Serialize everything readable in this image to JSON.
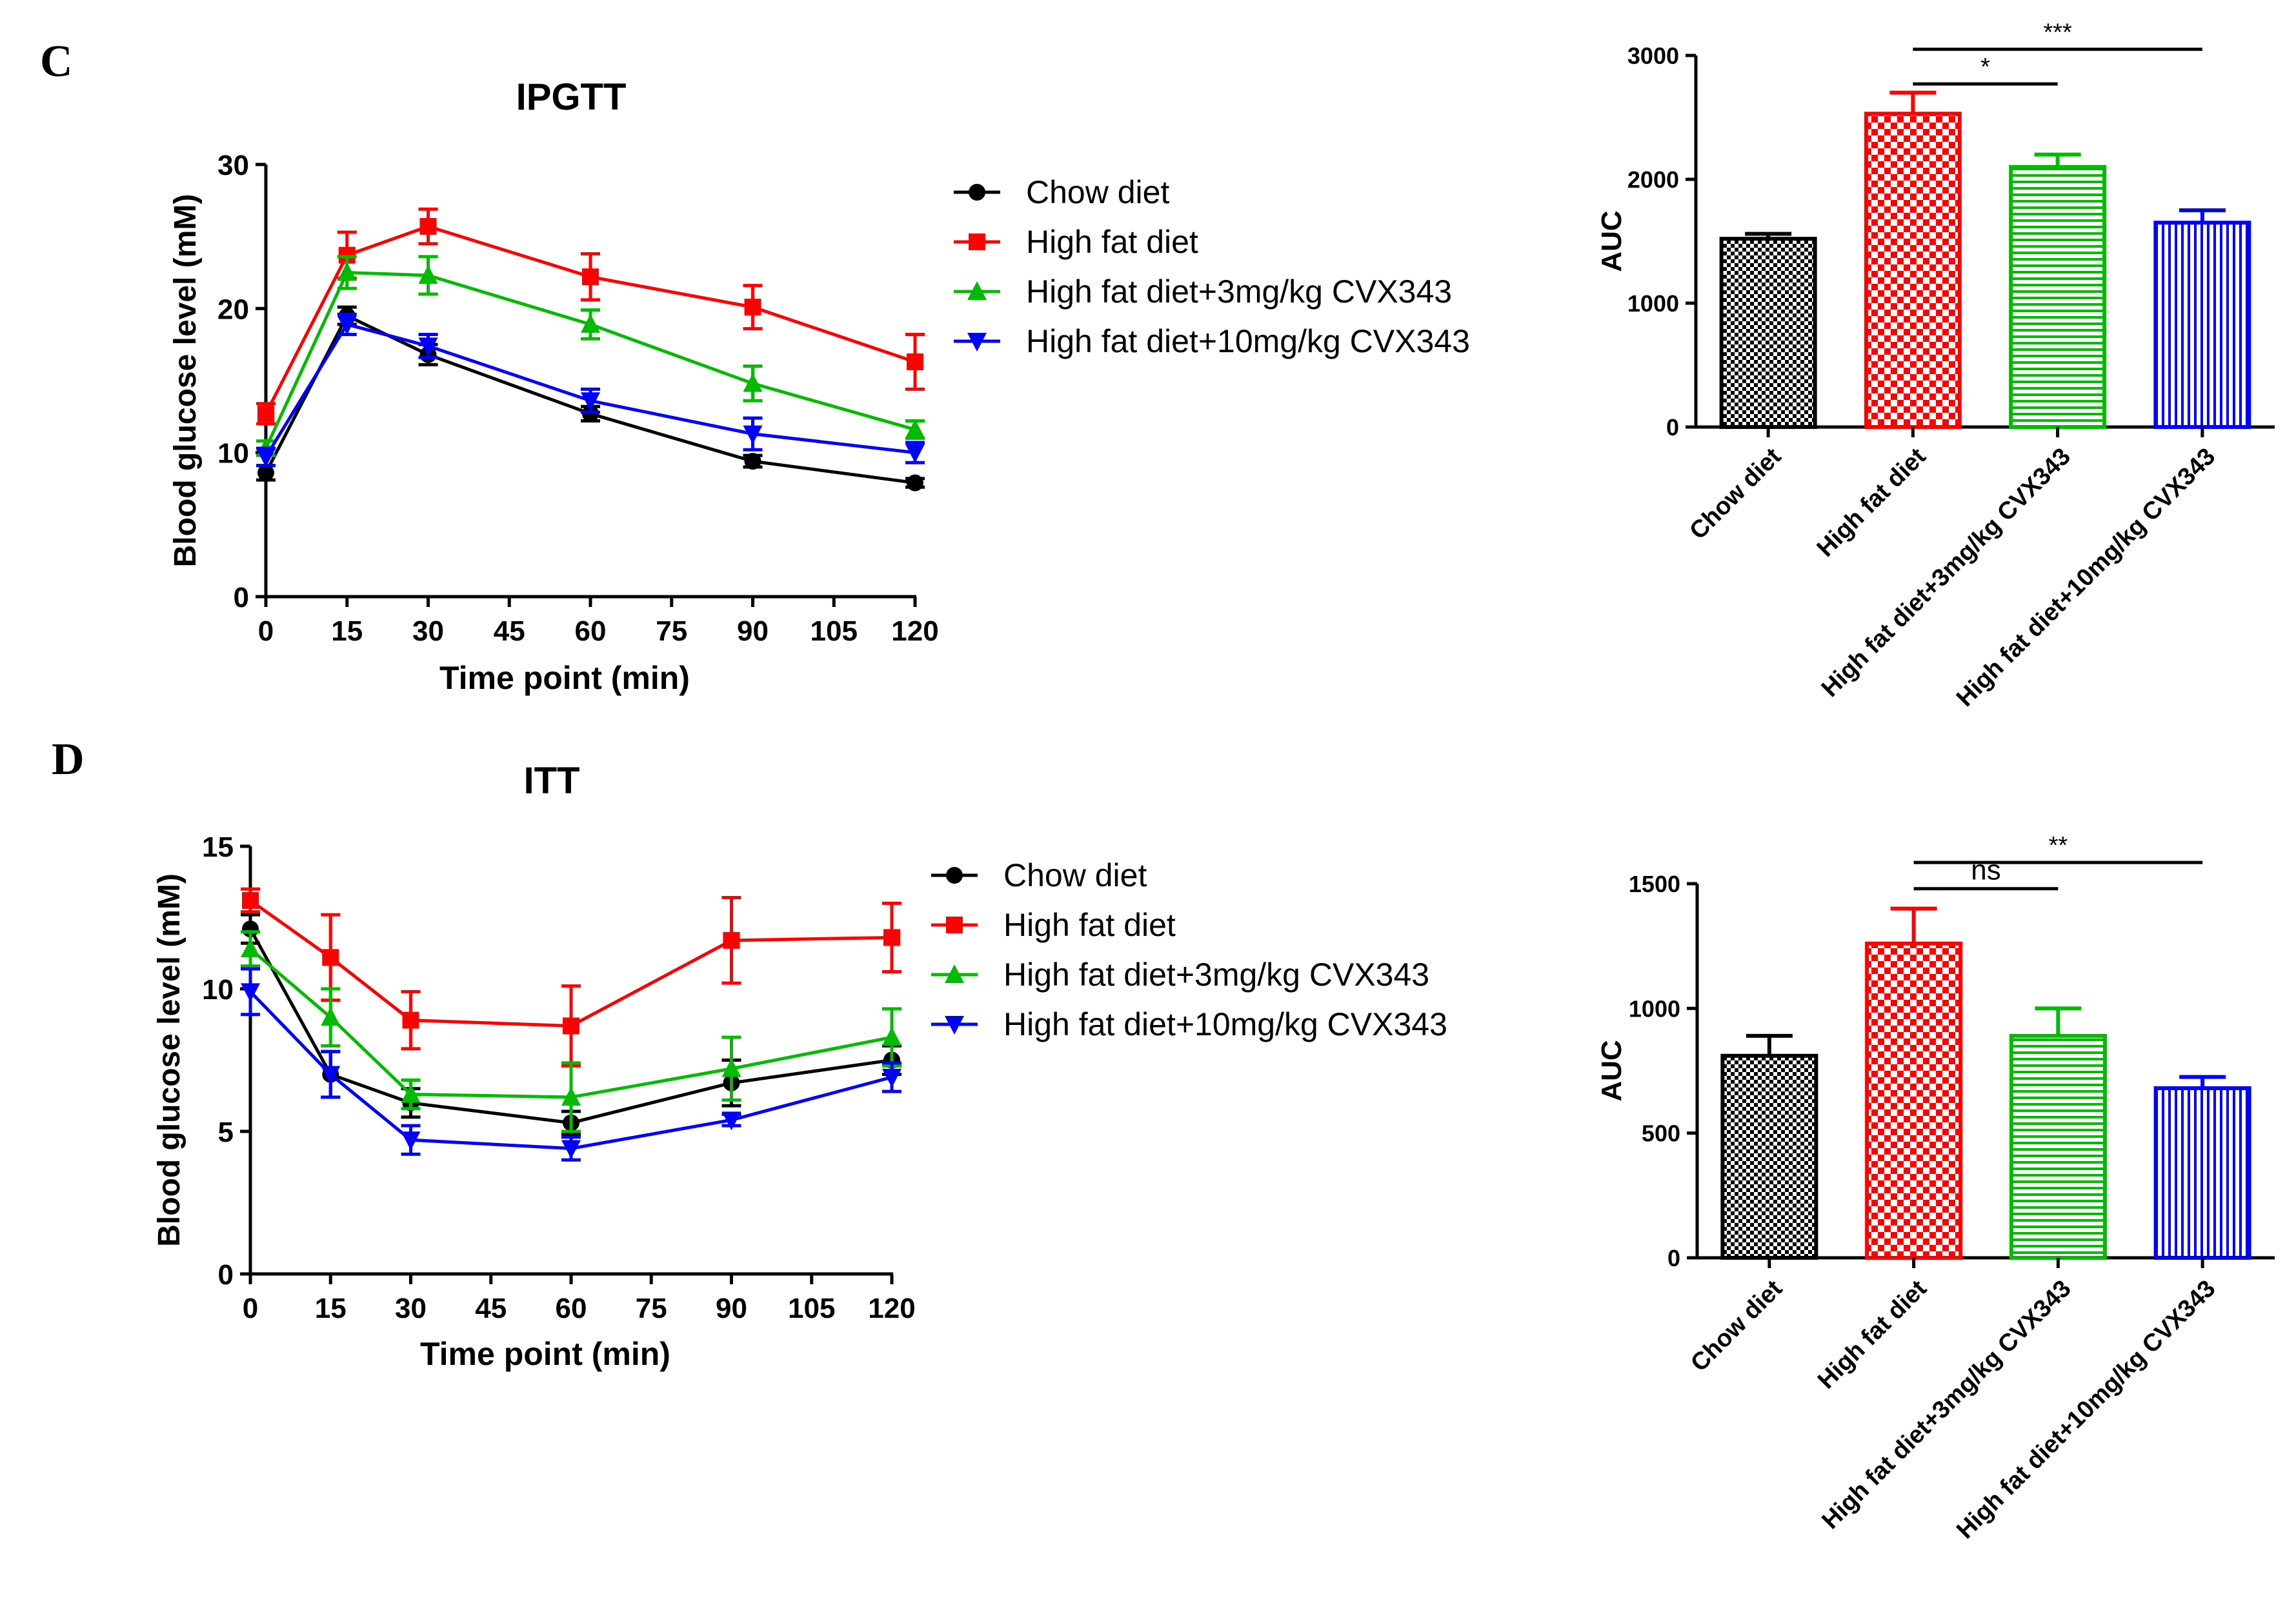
{
  "panel_labels": [
    "C",
    "D"
  ],
  "colors": {
    "chow": "#000000",
    "hfd": "#ff0000",
    "hfd3": "#00bb00",
    "hfd10": "#0000ff"
  },
  "chart_data": [
    {
      "id": "ipgtt",
      "type": "line",
      "title": "IPGTT",
      "xlabel": "Time point (min)",
      "ylabel": "Blood glucose level (mM)",
      "xlim": [
        0,
        120
      ],
      "ylim": [
        0,
        30
      ],
      "xticks": [
        0,
        15,
        30,
        45,
        60,
        75,
        90,
        105,
        120
      ],
      "yticks": [
        0,
        10,
        20,
        30
      ],
      "x": [
        0,
        15,
        30,
        60,
        90,
        120
      ],
      "series": [
        {
          "name": "Chow diet",
          "key": "chow",
          "marker": "circle",
          "values": [
            8.6,
            19.5,
            16.8,
            12.7,
            9.4,
            7.9
          ],
          "errors": [
            0.5,
            0.6,
            0.7,
            0.5,
            0.4,
            0.3
          ]
        },
        {
          "name": "High fat diet",
          "key": "hfd",
          "marker": "square",
          "values": [
            12.7,
            23.7,
            25.7,
            22.2,
            20.1,
            16.3
          ],
          "errors": [
            0.7,
            1.6,
            1.2,
            1.6,
            1.5,
            1.9
          ]
        },
        {
          "name": "High fat diet+3mg/kg CVX343",
          "key": "hfd3",
          "marker": "triangle-up",
          "values": [
            10.3,
            22.5,
            22.3,
            18.9,
            14.8,
            11.6
          ],
          "errors": [
            0.5,
            1.1,
            1.3,
            1.0,
            1.2,
            0.6
          ]
        },
        {
          "name": "High fat diet+10mg/kg CVX343",
          "key": "hfd10",
          "marker": "triangle-down",
          "values": [
            9.7,
            18.9,
            17.4,
            13.6,
            11.3,
            10.0
          ],
          "errors": [
            0.6,
            0.7,
            0.8,
            0.8,
            1.1,
            0.7
          ]
        }
      ]
    },
    {
      "id": "ipgtt_auc",
      "type": "bar",
      "title": "",
      "ylabel": "AUC",
      "ylim": [
        0,
        3000
      ],
      "yticks": [
        0,
        1000,
        2000,
        3000
      ],
      "categories": [
        "Chow diet",
        "High fat diet",
        "High fat diet+3mg/kg CVX343",
        "High fat diet+10mg/kg CVX343"
      ],
      "keys": [
        "chow",
        "hfd",
        "hfd3",
        "hfd10"
      ],
      "patterns": [
        "checker",
        "checker-big",
        "hstripe",
        "vstripe"
      ],
      "values": [
        1520,
        2530,
        2100,
        1650
      ],
      "errors": [
        40,
        170,
        100,
        100
      ],
      "significance": [
        {
          "from": 1,
          "to": 2,
          "label": "*",
          "y": 2770
        },
        {
          "from": 1,
          "to": 3,
          "label": "***",
          "y": 3050
        }
      ]
    },
    {
      "id": "itt",
      "type": "line",
      "title": "ITT",
      "xlabel": "Time point (min)",
      "ylabel": "Blood glucose level (mM)",
      "xlim": [
        0,
        120
      ],
      "ylim": [
        0,
        15
      ],
      "xticks": [
        0,
        15,
        30,
        45,
        60,
        75,
        90,
        105,
        120
      ],
      "yticks": [
        0,
        5,
        10,
        15
      ],
      "x": [
        0,
        15,
        30,
        60,
        90,
        120
      ],
      "series": [
        {
          "name": "Chow diet",
          "key": "chow",
          "marker": "circle",
          "values": [
            12.1,
            7.0,
            6.0,
            5.3,
            6.7,
            7.5
          ],
          "errors": [
            0.5,
            0.8,
            0.5,
            0.4,
            0.8,
            0.5
          ]
        },
        {
          "name": "High fat diet",
          "key": "hfd",
          "marker": "square",
          "values": [
            13.1,
            11.1,
            8.9,
            8.7,
            11.7,
            11.8
          ],
          "errors": [
            0.4,
            1.5,
            1.0,
            1.4,
            1.5,
            1.2
          ]
        },
        {
          "name": "High fat diet+3mg/kg CVX343",
          "key": "hfd3",
          "marker": "triangle-up",
          "values": [
            11.4,
            9.0,
            6.3,
            6.2,
            7.2,
            8.3
          ],
          "errors": [
            0.6,
            1.0,
            0.5,
            1.2,
            1.1,
            1.0
          ]
        },
        {
          "name": "High fat diet+10mg/kg CVX343",
          "key": "hfd10",
          "marker": "triangle-down",
          "values": [
            9.9,
            7.0,
            4.7,
            4.4,
            5.4,
            6.9
          ],
          "errors": [
            0.8,
            0.8,
            0.5,
            0.4,
            0.2,
            0.5
          ]
        }
      ]
    },
    {
      "id": "itt_auc",
      "type": "bar",
      "title": "",
      "ylabel": "AUC",
      "ylim": [
        0,
        1500
      ],
      "yticks": [
        0,
        500,
        1000,
        1500
      ],
      "categories": [
        "Chow diet",
        "High fat diet",
        "High fat diet+3mg/kg CVX343",
        "High fat diet+10mg/kg CVX343"
      ],
      "keys": [
        "chow",
        "hfd",
        "hfd3",
        "hfd10"
      ],
      "patterns": [
        "checker",
        "checker-big",
        "hstripe",
        "vstripe"
      ],
      "values": [
        810,
        1260,
        890,
        680
      ],
      "errors": [
        80,
        140,
        110,
        45
      ],
      "significance": [
        {
          "from": 1,
          "to": 2,
          "label": "ns",
          "y": 1480
        },
        {
          "from": 1,
          "to": 3,
          "label": "**",
          "y": 1585
        }
      ]
    }
  ]
}
